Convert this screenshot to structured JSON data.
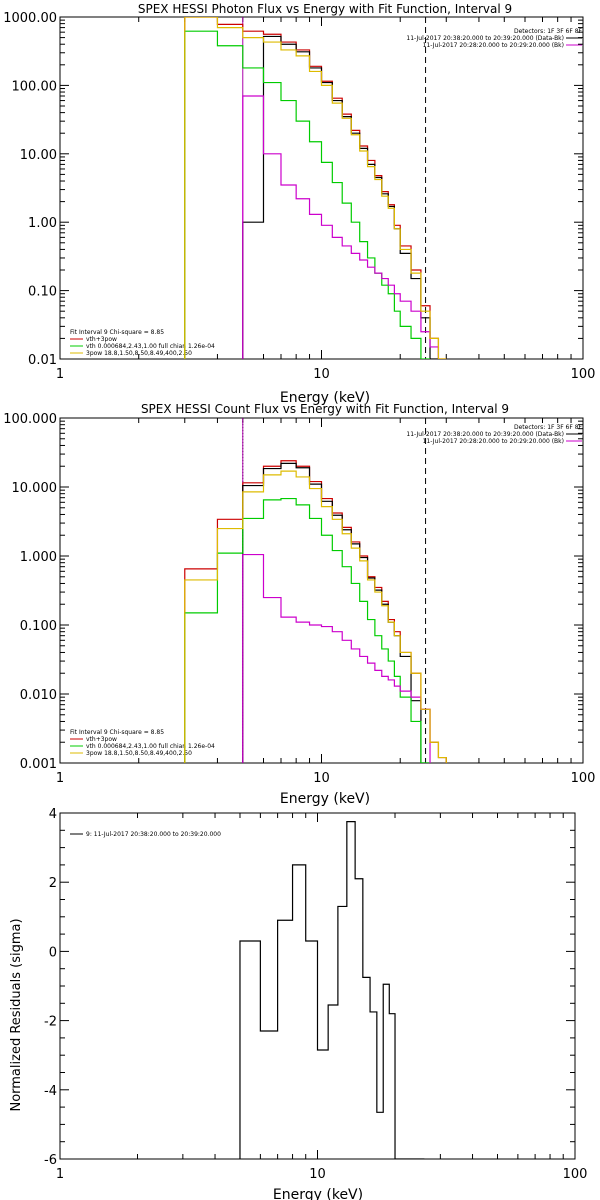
{
  "chart_data": [
    {
      "type": "line",
      "title": "SPEX HESSI Photon Flux vs Energy with Fit Function, Interval 9",
      "xlabel": "Energy (keV)",
      "ylabel": "",
      "xscale": "log",
      "yscale": "log",
      "xlim": [
        1,
        100
      ],
      "ylim": [
        0.01,
        1000
      ],
      "x_ticks": [
        1,
        10,
        100
      ],
      "x_tick_labels": [
        "1",
        "10",
        "100"
      ],
      "y_ticks": [
        0.01,
        0.1,
        1,
        10,
        100,
        1000
      ],
      "y_tick_labels": [
        "0.01",
        "0.10",
        "1.00",
        "10.00",
        "100.00",
        "1000.00"
      ],
      "vlines": [
        {
          "x": 25.0,
          "style": "dashed",
          "color": "#000000"
        },
        {
          "x": 5.0,
          "style": "solid",
          "color": "#aa00aa"
        }
      ],
      "legend_top": {
        "placement": "top-right",
        "header": "Detectors: 1F 3F 6F 8F",
        "entries": [
          {
            "text": "11-Jul-2017 20:38:20.000 to 20:39:20.000 (Data-Bk)",
            "color": "#000000"
          },
          {
            "text": "11-Jul-2017 20:28:20.000 to 20:29:20.000 (Bk)",
            "color": "#cc00cc"
          }
        ]
      },
      "legend_bottom": {
        "placement": "bottom-left",
        "header": "Fit Interval 9   Chi-square = 8.85",
        "entries": [
          {
            "text": "vth+3pow",
            "color": "#cc0000"
          },
          {
            "text": "vth 0.000684,2.43,1.00   full chian 1.26e-04",
            "color": "#00cc00"
          },
          {
            "text": "3pow 18.8,1.50,8.50,8.49,400,2.50",
            "color": "#ddbb00"
          }
        ]
      },
      "bin_edges": [
        3.0,
        4.0,
        5.0,
        6.0,
        7.0,
        8.0,
        9.0,
        10.0,
        11.0,
        12.0,
        13.0,
        14.0,
        15.0,
        16.0,
        17.0,
        18.0,
        19.0,
        20.0,
        22.0,
        24.0,
        26.0,
        28.0,
        30.0
      ],
      "series": [
        {
          "color": "#cc0000",
          "values": [
            1000,
            780,
            620,
            560,
            430,
            330,
            190,
            115,
            65,
            38,
            22,
            13,
            8.0,
            4.8,
            2.8,
            1.8,
            0.9,
            0.45,
            0.2,
            0.06,
            0.02,
            0.01
          ]
        },
        {
          "color": "#000000",
          "values": [
            null,
            null,
            1.0,
            520,
            400,
            310,
            180,
            110,
            60,
            35,
            20,
            12,
            7.0,
            4.5,
            2.6,
            1.7,
            0.8,
            0.35,
            0.15,
            0.04,
            0.01,
            null
          ]
        },
        {
          "color": "#00cc00",
          "values": [
            620,
            380,
            180,
            110,
            60,
            30,
            15,
            7.5,
            3.8,
            1.9,
            1.0,
            0.52,
            0.3,
            0.18,
            0.12,
            0.09,
            0.05,
            0.03,
            0.02,
            0.01,
            null,
            null
          ]
        },
        {
          "color": "#cc00cc",
          "values": [
            null,
            null,
            70,
            10,
            3.5,
            2.2,
            1.3,
            0.9,
            0.6,
            0.45,
            0.35,
            0.28,
            0.22,
            0.18,
            0.15,
            0.12,
            0.09,
            0.07,
            0.05,
            0.025,
            0.015,
            null
          ]
        },
        {
          "color": "#ddbb00",
          "values": [
            1000,
            700,
            500,
            430,
            330,
            270,
            160,
            100,
            55,
            33,
            19,
            11,
            6.5,
            4.2,
            2.4,
            1.6,
            0.8,
            0.4,
            0.18,
            0.05,
            0.02,
            0.01
          ]
        }
      ]
    },
    {
      "type": "line",
      "title": "SPEX HESSI Count Flux vs Energy with Fit Function, Interval 9",
      "xlabel": "Energy (keV)",
      "ylabel": "",
      "xscale": "log",
      "yscale": "log",
      "xlim": [
        1,
        100
      ],
      "ylim": [
        0.001,
        100
      ],
      "x_ticks": [
        1,
        10,
        100
      ],
      "x_tick_labels": [
        "1",
        "10",
        "100"
      ],
      "y_ticks": [
        0.001,
        0.01,
        0.1,
        1,
        10,
        100
      ],
      "y_tick_labels": [
        "0.001",
        "0.010",
        "0.100",
        "1.000",
        "10.000",
        "100.000"
      ],
      "vlines": [
        {
          "x": 25.0,
          "style": "dashed",
          "color": "#000000"
        },
        {
          "x": 5.0,
          "style": "dotted",
          "color": "#000000"
        },
        {
          "x": 5.0,
          "style": "solid",
          "color": "#aa00aa"
        }
      ],
      "legend_top": {
        "placement": "top-right",
        "header": "Detectors: 1F 3F 6F 8F",
        "entries": [
          {
            "text": "11-Jul-2017 20:38:20.000 to 20:39:20.000 (Data-Bk)",
            "color": "#000000"
          },
          {
            "text": "11-Jul-2017 20:28:20.000 to 20:29:20.000 (Bk)",
            "color": "#cc00cc"
          }
        ]
      },
      "legend_bottom": {
        "placement": "bottom-left",
        "header": "Fit Interval 9   Chi-square = 8.85",
        "entries": [
          {
            "text": "vth+3pow",
            "color": "#cc0000"
          },
          {
            "text": "vth 0.000684,2.43,1.00   full chian 1.26e-04",
            "color": "#00cc00"
          },
          {
            "text": "3pow 18.8,1.50,8.50,8.49,400,2.50",
            "color": "#ddbb00"
          }
        ]
      },
      "bin_edges": [
        3.0,
        4.0,
        5.0,
        6.0,
        7.0,
        8.0,
        9.0,
        10.0,
        11.0,
        12.0,
        13.0,
        14.0,
        15.0,
        16.0,
        17.0,
        18.0,
        19.0,
        20.0,
        22.0,
        24.0,
        26.0,
        28.0,
        30.0
      ],
      "series": [
        {
          "color": "#cc0000",
          "values": [
            0.65,
            3.4,
            11.5,
            20,
            24,
            20,
            12,
            6.8,
            4.2,
            2.6,
            1.6,
            1.0,
            0.5,
            0.35,
            0.22,
            0.12,
            0.08,
            0.04,
            0.02,
            0.006,
            0.002,
            0.0012
          ]
        },
        {
          "color": "#000000",
          "values": [
            null,
            null,
            10.5,
            18.5,
            22,
            19,
            11,
            6.2,
            3.9,
            2.4,
            1.5,
            0.95,
            0.48,
            0.32,
            0.2,
            0.11,
            0.07,
            0.035,
            0.008,
            0.001,
            null,
            null
          ]
        },
        {
          "color": "#00cc00",
          "values": [
            0.15,
            1.1,
            3.5,
            6.5,
            6.8,
            5.5,
            3.5,
            2.0,
            1.2,
            0.7,
            0.4,
            0.22,
            0.12,
            0.07,
            0.045,
            0.03,
            0.018,
            0.009,
            0.004,
            0.001,
            null,
            null
          ]
        },
        {
          "color": "#cc00cc",
          "values": [
            null,
            null,
            1.05,
            0.25,
            0.13,
            0.11,
            0.1,
            0.095,
            0.08,
            0.06,
            0.045,
            0.035,
            0.028,
            0.022,
            0.018,
            0.016,
            0.013,
            0.011,
            0.009,
            0.006,
            null,
            null
          ]
        },
        {
          "color": "#ddbb00",
          "values": [
            0.45,
            2.5,
            8.5,
            15,
            17,
            14,
            9.5,
            5.2,
            3.4,
            2.1,
            1.3,
            0.85,
            0.45,
            0.3,
            0.19,
            0.11,
            0.07,
            0.04,
            0.02,
            0.006,
            0.002,
            0.0012
          ]
        }
      ]
    },
    {
      "type": "line",
      "title": "",
      "xlabel": "Energy (keV)",
      "ylabel": "Normalized Residuals (sigma)",
      "xscale": "log",
      "yscale": "linear",
      "xlim": [
        1,
        100
      ],
      "ylim": [
        -6,
        4
      ],
      "x_ticks": [
        1,
        10,
        100
      ],
      "x_tick_labels": [
        "1",
        "10",
        "100"
      ],
      "y_ticks": [
        -6,
        -4,
        -2,
        0,
        2,
        4
      ],
      "y_tick_labels": [
        "-6",
        "-4",
        "-2",
        "0",
        "2",
        "4"
      ],
      "legend": {
        "placement": "top-left",
        "text": "9: 11-Jul-2017 20:38:20.000 to 20:39:20.000",
        "color": "#000000"
      },
      "bin_edges": [
        5.0,
        6.0,
        7.0,
        8.0,
        9.0,
        10.0,
        11.0,
        12.0,
        13.0,
        14.0,
        15.0,
        16.0,
        17.0,
        18.0,
        19.0,
        20.0,
        22.0,
        24.0,
        26.0
      ],
      "series": [
        {
          "color": "#000000",
          "values": [
            0.3,
            -2.3,
            0.9,
            2.5,
            0.3,
            -2.85,
            -1.55,
            1.3,
            3.75,
            2.1,
            -0.75,
            -1.75,
            -4.65,
            -0.95,
            -1.8,
            -6.0,
            -6.0,
            -6.0
          ]
        }
      ]
    }
  ]
}
